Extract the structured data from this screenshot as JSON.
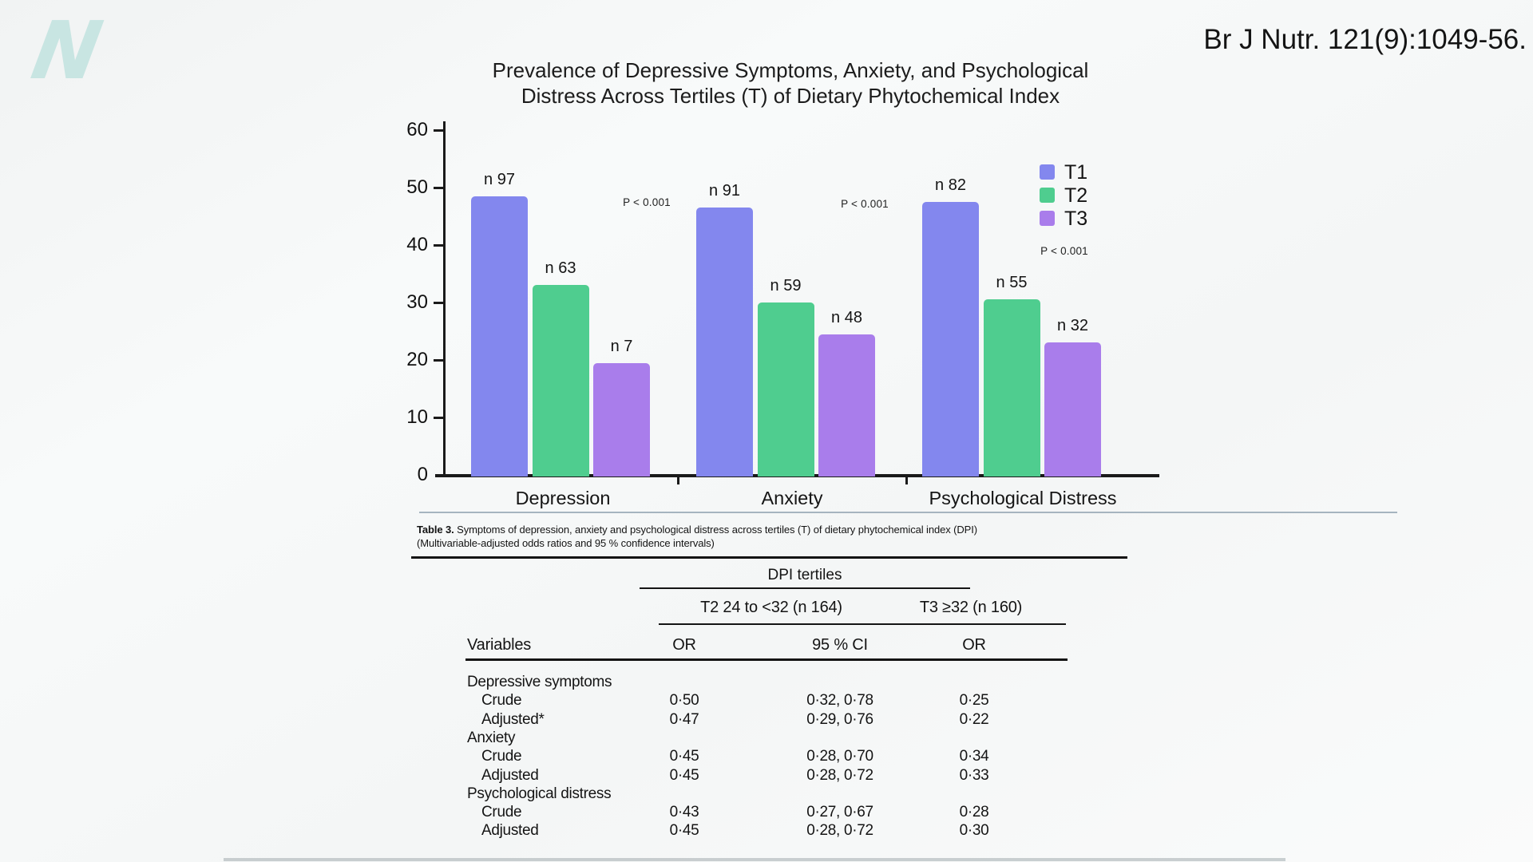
{
  "slide": {
    "logo_letter": "N",
    "citation": "Br J Nutr. 121(9):1049-56."
  },
  "chart_data": {
    "type": "bar",
    "title_line1": "Prevalence of Depressive Symptoms, Anxiety, and Psychological",
    "title_line2": "Distress Across Tertiles (T) of Dietary Phytochemical Index",
    "categories": [
      "Depression",
      "Anxiety",
      "Psychological Distress"
    ],
    "series": [
      {
        "name": "T1",
        "color": "#8387ee",
        "values": [
          48.5,
          46.5,
          47.5
        ],
        "bar_labels": [
          "n 97",
          "n 91",
          "n 82"
        ]
      },
      {
        "name": "T2",
        "color": "#4fcd8f",
        "values": [
          33,
          30,
          30.5
        ],
        "bar_labels": [
          "n 63",
          "n 59",
          "n 55"
        ]
      },
      {
        "name": "T3",
        "color": "#a97deb",
        "values": [
          19.5,
          24.5,
          23
        ],
        "bar_labels": [
          "n 7",
          "n 48",
          "n 32"
        ]
      }
    ],
    "ylabel": "",
    "xlabel": "",
    "ylim": [
      0,
      60
    ],
    "yticks": [
      0,
      10,
      20,
      30,
      40,
      50,
      60
    ],
    "grid": false,
    "legend_position": "top-right",
    "annotations": [
      {
        "text": "P < 0.001",
        "anchor": "gap1"
      },
      {
        "text": "P < 0.001",
        "anchor": "gap2"
      },
      {
        "text": "P < 0.001",
        "anchor": "legend"
      }
    ]
  },
  "table": {
    "caption_label": "Table 3.",
    "caption_text": "Symptoms of depression, anxiety and psychological distress across tertiles (T) of dietary phytochemical index (DPI)",
    "caption_line2": "(Multivariable-adjusted odds ratios and 95 % confidence intervals)",
    "group_header": "DPI tertiles",
    "col_groups": [
      "T2 24 to <32 (n 164)",
      "T3 ≥32 (n 160)"
    ],
    "col_headers": [
      "Variables",
      "OR",
      "95 % CI",
      "OR"
    ],
    "rows": [
      {
        "label": "Depressive symptoms",
        "indent": false,
        "or1": "",
        "ci": "",
        "or2": ""
      },
      {
        "label": "Crude",
        "indent": true,
        "or1": "0·50",
        "ci": "0·32, 0·78",
        "or2": "0·25"
      },
      {
        "label": "Adjusted*",
        "indent": true,
        "or1": "0·47",
        "ci": "0·29, 0·76",
        "or2": "0·22"
      },
      {
        "label": "Anxiety",
        "indent": false,
        "or1": "",
        "ci": "",
        "or2": ""
      },
      {
        "label": "Crude",
        "indent": true,
        "or1": "0·45",
        "ci": "0·28, 0·70",
        "or2": "0·34"
      },
      {
        "label": "Adjusted",
        "indent": true,
        "or1": "0·45",
        "ci": "0·28, 0·72",
        "or2": "0·33"
      },
      {
        "label": "Psychological distress",
        "indent": false,
        "or1": "",
        "ci": "",
        "or2": ""
      },
      {
        "label": "Crude",
        "indent": true,
        "or1": "0·43",
        "ci": "0·27, 0·67",
        "or2": "0·28"
      },
      {
        "label": "Adjusted",
        "indent": true,
        "or1": "0·45",
        "ci": "0·28, 0·72",
        "or2": "0·30"
      }
    ]
  }
}
